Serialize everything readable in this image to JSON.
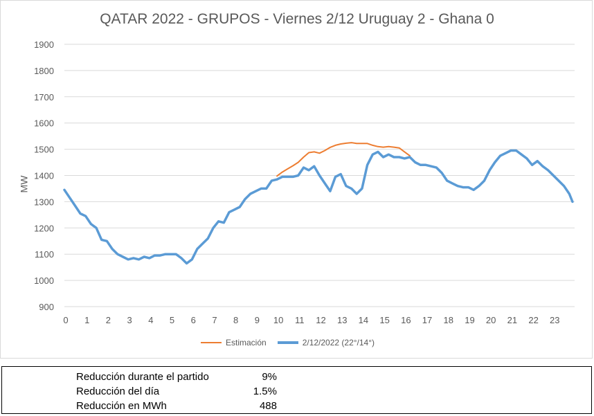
{
  "chart_data": {
    "type": "line",
    "title": "QATAR 2022 - GRUPOS - Viernes 2/12 Uruguay 2  - Ghana 0",
    "xlabel": "",
    "ylabel": "MW",
    "xlim": [
      0,
      24
    ],
    "ylim": [
      900,
      1900
    ],
    "y_ticks": [
      "900",
      "1000",
      "1100",
      "1200",
      "1300",
      "1400",
      "1500",
      "1600",
      "1700",
      "1800",
      "1900"
    ],
    "x_ticks": [
      "0",
      "1",
      "2",
      "3",
      "4",
      "5",
      "6",
      "7",
      "8",
      "9",
      "10",
      "11",
      "12",
      "13",
      "14",
      "15",
      "16",
      "17",
      "18",
      "19",
      "20",
      "21",
      "22",
      "23"
    ],
    "grid": true,
    "legend_position": "bottom",
    "series": [
      {
        "name": "Estimación",
        "color": "#ed7d31",
        "x": [
          10.0,
          10.25,
          10.5,
          10.75,
          11.0,
          11.25,
          11.5,
          11.75,
          12.0,
          12.25,
          12.5,
          12.75,
          13.0,
          13.25,
          13.5,
          13.75,
          14.0,
          14.25,
          14.5,
          14.75,
          15.0,
          15.25,
          15.5,
          15.75,
          16.0,
          16.25
        ],
        "values": [
          1398,
          1413,
          1425,
          1437,
          1450,
          1470,
          1487,
          1490,
          1485,
          1495,
          1507,
          1515,
          1520,
          1523,
          1525,
          1522,
          1522,
          1522,
          1515,
          1510,
          1508,
          1510,
          1508,
          1505,
          1490,
          1475
        ]
      },
      {
        "name": "2/12/2022 (22°/14°)",
        "color": "#5b9bd5",
        "x": [
          0.0,
          0.25,
          0.5,
          0.75,
          1.0,
          1.25,
          1.5,
          1.75,
          2.0,
          2.25,
          2.5,
          2.75,
          3.0,
          3.25,
          3.5,
          3.75,
          4.0,
          4.25,
          4.5,
          4.75,
          5.0,
          5.25,
          5.5,
          5.75,
          6.0,
          6.25,
          6.5,
          6.75,
          7.0,
          7.25,
          7.5,
          7.75,
          8.0,
          8.25,
          8.5,
          8.75,
          9.0,
          9.25,
          9.5,
          9.75,
          10.0,
          10.25,
          10.5,
          10.75,
          11.0,
          11.25,
          11.5,
          11.75,
          12.0,
          12.25,
          12.5,
          12.75,
          13.0,
          13.25,
          13.5,
          13.75,
          14.0,
          14.25,
          14.5,
          14.75,
          15.0,
          15.25,
          15.5,
          15.75,
          16.0,
          16.25,
          16.5,
          16.75,
          17.0,
          17.25,
          17.5,
          17.75,
          18.0,
          18.25,
          18.5,
          18.75,
          19.0,
          19.25,
          19.5,
          19.75,
          20.0,
          20.25,
          20.5,
          20.75,
          21.0,
          21.25,
          21.5,
          21.75,
          22.0,
          22.25,
          22.5,
          22.75,
          23.0,
          23.25,
          23.5,
          23.75,
          23.9
        ],
        "values": [
          1345,
          1315,
          1285,
          1255,
          1245,
          1215,
          1200,
          1155,
          1150,
          1120,
          1100,
          1090,
          1080,
          1085,
          1080,
          1090,
          1085,
          1095,
          1095,
          1100,
          1100,
          1100,
          1085,
          1065,
          1080,
          1120,
          1140,
          1160,
          1200,
          1225,
          1220,
          1260,
          1270,
          1280,
          1310,
          1330,
          1340,
          1350,
          1350,
          1380,
          1385,
          1395,
          1395,
          1395,
          1400,
          1430,
          1420,
          1435,
          1400,
          1370,
          1340,
          1395,
          1405,
          1360,
          1350,
          1330,
          1350,
          1440,
          1480,
          1490,
          1470,
          1480,
          1470,
          1470,
          1465,
          1470,
          1450,
          1440,
          1440,
          1435,
          1430,
          1410,
          1380,
          1370,
          1360,
          1355,
          1355,
          1345,
          1360,
          1380,
          1420,
          1450,
          1475,
          1485,
          1495,
          1495,
          1480,
          1465,
          1440,
          1455,
          1435,
          1420,
          1400,
          1380,
          1360,
          1330,
          1300
        ]
      }
    ]
  },
  "summary": {
    "rows": [
      {
        "label": "Reducción durante el partido",
        "value": "9%"
      },
      {
        "label": "Reducción del día",
        "value": "1.5%"
      },
      {
        "label": "Reducción en MWh",
        "value": "488"
      }
    ]
  }
}
